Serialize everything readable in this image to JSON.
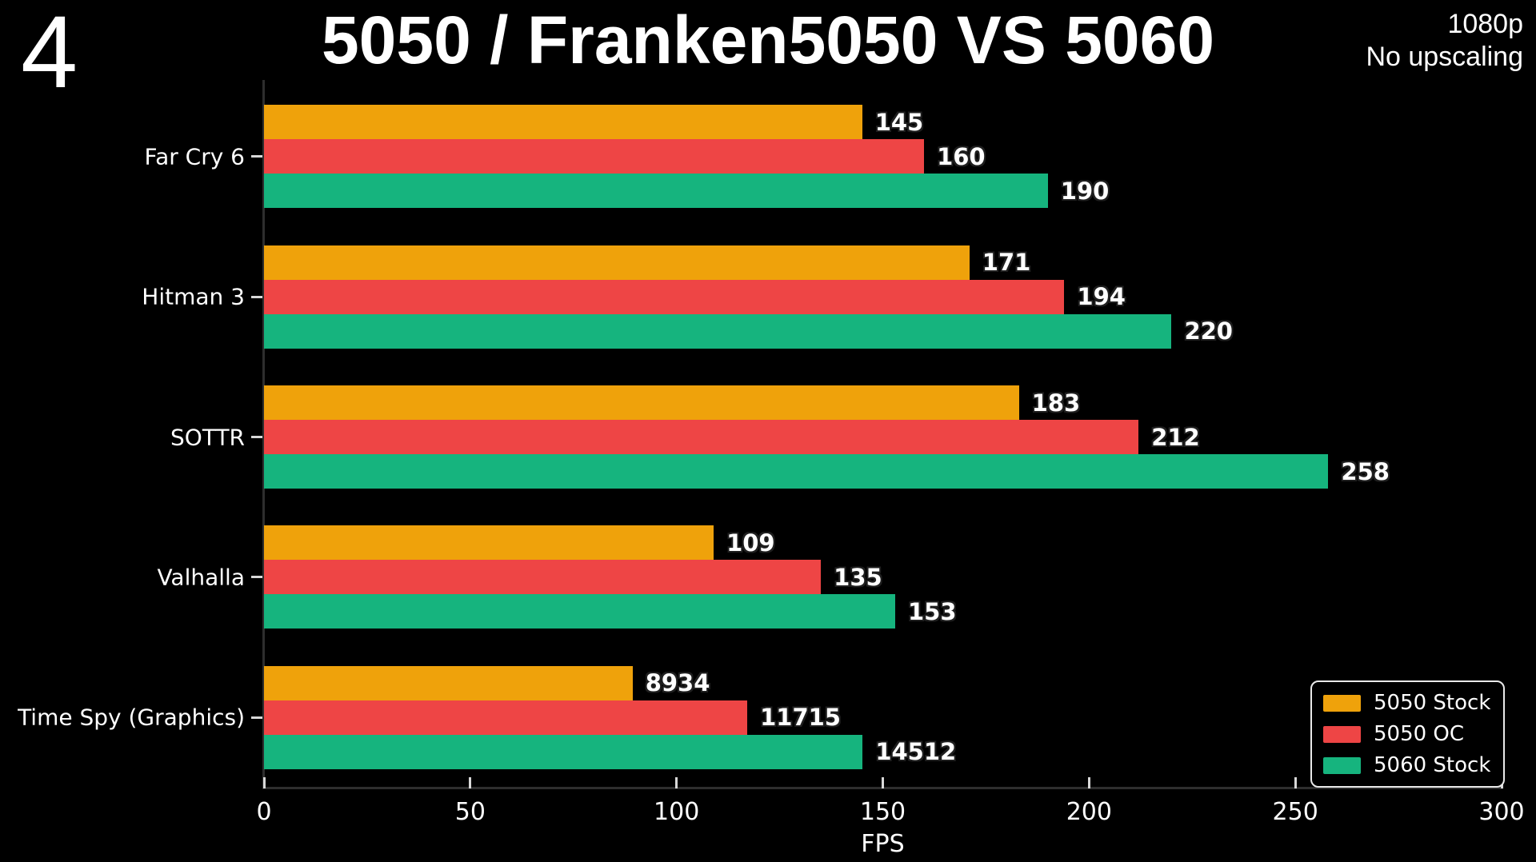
{
  "page": {
    "corner_number": "4",
    "title": "5050 / Franken5050 VS 5060",
    "note_lines": [
      "1080p",
      "No upscaling"
    ]
  },
  "colors": {
    "background": "#000000",
    "text": "#ffffff",
    "spine": "#2e2e2e",
    "tick": "#d8d8d8",
    "legend_border": "#eaeaea",
    "series_orange": "#EFA20B",
    "series_red": "#EE4545",
    "series_green": "#16B47E"
  },
  "chart_data": {
    "type": "bar",
    "orientation": "horizontal",
    "title": "5050 / Franken5050 VS 5060",
    "xlabel": "FPS",
    "xlim": [
      0,
      300
    ],
    "xticks": [
      0,
      50,
      100,
      150,
      200,
      250,
      300
    ],
    "grid": false,
    "categories": [
      "Far Cry 6",
      "Hitman 3",
      "SOTTR",
      "Valhalla",
      "Time Spy (Graphics)"
    ],
    "series": [
      {
        "name": "5050 Stock",
        "color": "#EFA20B",
        "values": [
          145,
          171,
          183,
          109,
          8934
        ],
        "plotted": [
          145,
          171,
          183,
          109,
          89.34
        ]
      },
      {
        "name": "5050 OC",
        "color": "#EE4545",
        "values": [
          160,
          194,
          212,
          135,
          11715
        ],
        "plotted": [
          160,
          194,
          212,
          135,
          117.15
        ]
      },
      {
        "name": "5060 Stock",
        "color": "#16B47E",
        "values": [
          190,
          220,
          258,
          153,
          14512
        ],
        "plotted": [
          190,
          220,
          258,
          153,
          145.12
        ]
      }
    ],
    "legend": {
      "position": "lower right",
      "entries": [
        "5050 Stock",
        "5050 OC",
        "5060 Stock"
      ]
    }
  }
}
